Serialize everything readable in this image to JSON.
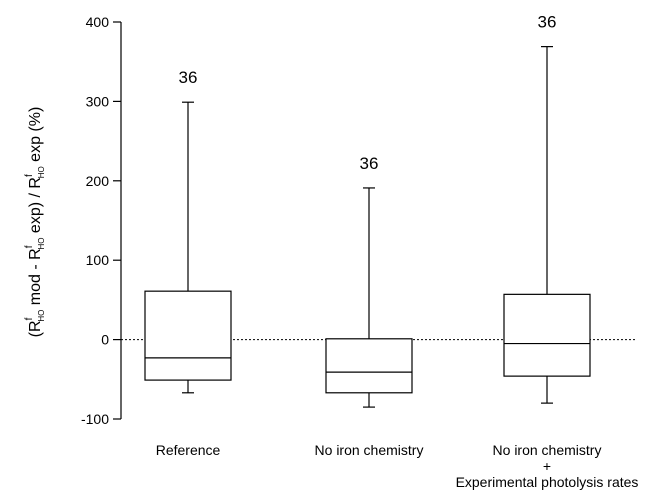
{
  "chart_data": {
    "type": "box",
    "ylabel": {
      "parts": [
        {
          "t": "(R",
          "s": "n"
        },
        {
          "t": "f",
          "s": "sup"
        },
        {
          "t": "HO",
          "s": "sub"
        },
        {
          "t": " mod - R",
          "s": "n"
        },
        {
          "t": "f",
          "s": "sup"
        },
        {
          "t": "HO",
          "s": "sub"
        },
        {
          "t": " exp) / R",
          "s": "n"
        },
        {
          "t": "f",
          "s": "sup"
        },
        {
          "t": "HO",
          "s": "sub"
        },
        {
          "t": " exp  (%)",
          "s": "n"
        }
      ]
    },
    "ylim": [
      -100,
      400
    ],
    "yticks": [
      -100,
      0,
      100,
      200,
      300,
      400
    ],
    "reference_line": 0,
    "categories": [
      {
        "label": [
          "Reference"
        ]
      },
      {
        "label": [
          "No iron chemistry"
        ]
      },
      {
        "label": [
          "No iron chemistry",
          "+",
          "Experimental photolysis rates"
        ]
      }
    ],
    "boxes": [
      {
        "min": -67,
        "q1": -51,
        "median": -23,
        "q3": 61,
        "max": 299,
        "n": "36"
      },
      {
        "min": -85,
        "q1": -67,
        "median": -41,
        "q3": 1,
        "max": 191,
        "n": "36"
      },
      {
        "min": -80,
        "q1": -46,
        "median": -5,
        "q3": 57,
        "max": 369,
        "n": "36"
      }
    ]
  }
}
